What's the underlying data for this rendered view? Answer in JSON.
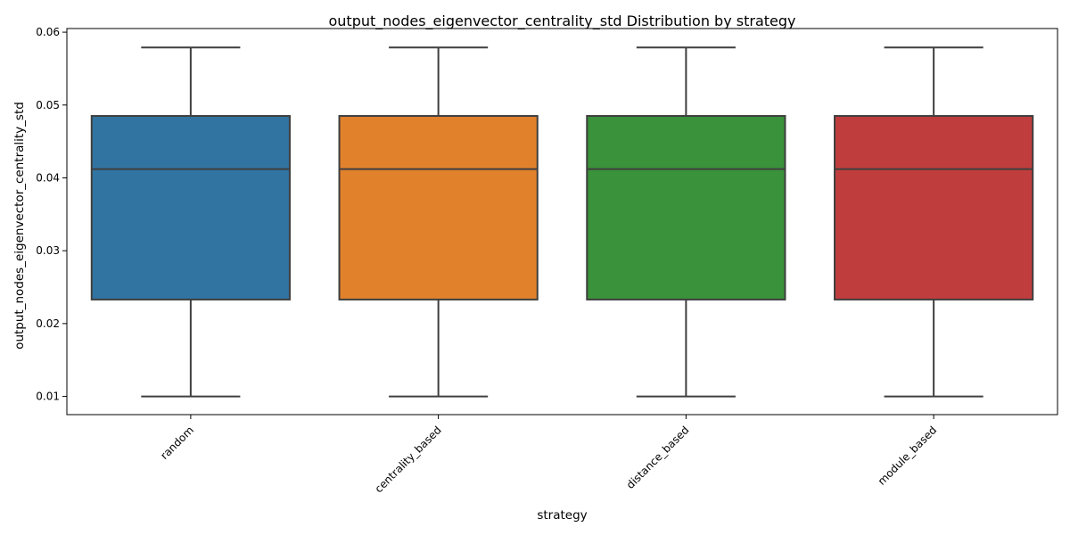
{
  "chart_data": {
    "type": "box",
    "title": "output_nodes_eigenvector_centrality_std Distribution by strategy",
    "xlabel": "strategy",
    "ylabel": "output_nodes_eigenvector_centrality_std",
    "ylim": [
      0.0075,
      0.0605
    ],
    "yticks": [
      0.01,
      0.02,
      0.03,
      0.04,
      0.05,
      0.06
    ],
    "ytick_labels": [
      "0.01",
      "0.02",
      "0.03",
      "0.04",
      "0.05",
      "0.06"
    ],
    "categories": [
      "random",
      "centrality_based",
      "distance_based",
      "module_based"
    ],
    "tick_rotation_deg": -45,
    "grid": false,
    "legend": "none",
    "boxes": [
      {
        "category": "random",
        "color": "#3274a1",
        "whisker_low": 0.01,
        "q1": 0.0233,
        "median": 0.0412,
        "q3": 0.0485,
        "whisker_high": 0.0579
      },
      {
        "category": "centrality_based",
        "color": "#e1812c",
        "whisker_low": 0.01,
        "q1": 0.0233,
        "median": 0.0412,
        "q3": 0.0485,
        "whisker_high": 0.0579
      },
      {
        "category": "distance_based",
        "color": "#3a923a",
        "whisker_low": 0.01,
        "q1": 0.0233,
        "median": 0.0412,
        "q3": 0.0485,
        "whisker_high": 0.0579
      },
      {
        "category": "module_based",
        "color": "#c03d3e",
        "whisker_low": 0.01,
        "q1": 0.0233,
        "median": 0.0412,
        "q3": 0.0485,
        "whisker_high": 0.0579
      }
    ],
    "line_color": "#3f3f3f"
  }
}
